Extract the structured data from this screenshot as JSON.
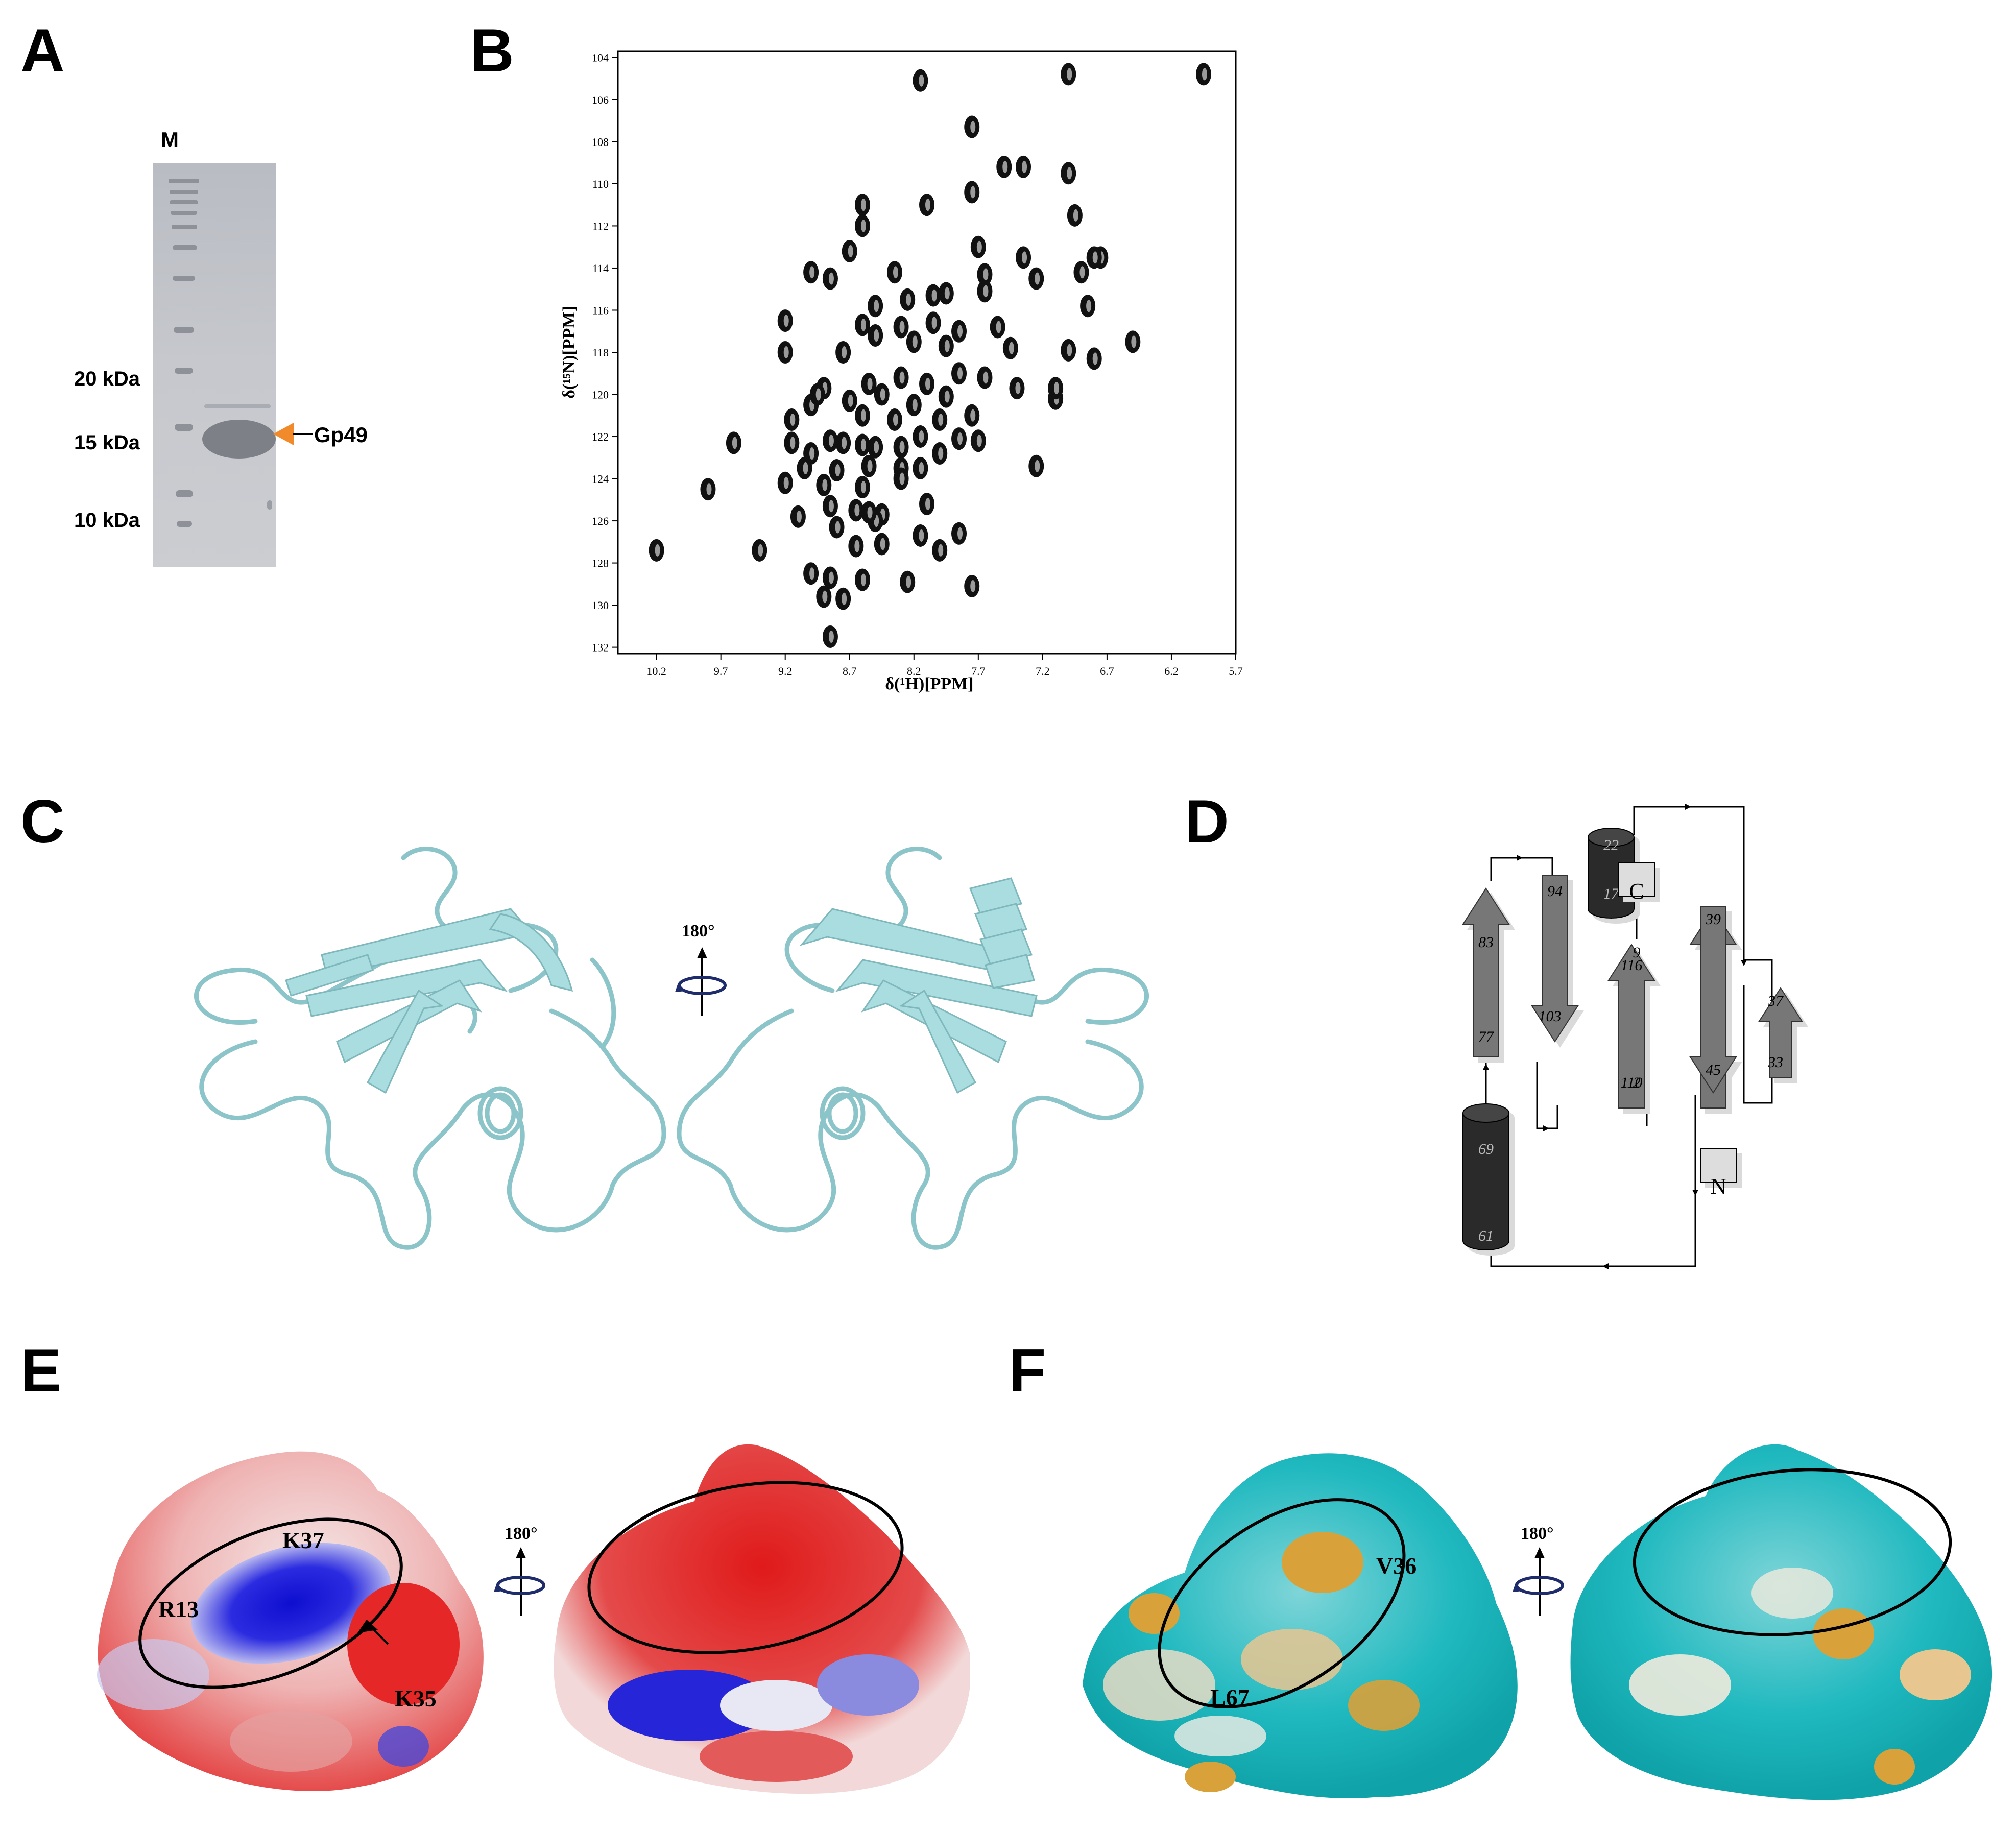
{
  "panels": {
    "a": "A",
    "b": "B",
    "c": "C",
    "d": "D",
    "e": "E",
    "f": "F"
  },
  "gel": {
    "marker_label": "M",
    "mw_labels": [
      "20 kDa",
      "15 kDa",
      "10 kDa"
    ],
    "band_label": "Gp49",
    "arrow_color": "#F08A2B"
  },
  "chart_data": {
    "type": "scatter",
    "xlabel": "δ(¹H)[PPM]",
    "ylabel": "δ(¹⁵N)[PPM]",
    "xlim": [
      10.5,
      5.7
    ],
    "ylim": [
      132.3,
      103.7
    ],
    "x_ticks": [
      "10.2",
      "9.7",
      "9.2",
      "8.7",
      "8.2",
      "7.7",
      "7.2",
      "6.7",
      "6.2",
      "5.7"
    ],
    "y_ticks": [
      "104",
      "106",
      "108",
      "110",
      "112",
      "114",
      "116",
      "118",
      "120",
      "122",
      "124",
      "126",
      "128",
      "130",
      "132"
    ],
    "series": [
      {
        "x": [
          8.15,
          7.0,
          5.95,
          7.75,
          7.5,
          7.35,
          7.0,
          7.75,
          6.95,
          8.6,
          8.1,
          8.6,
          7.7,
          7.35,
          6.75,
          9.0,
          8.85,
          8.7,
          8.35,
          7.95,
          7.65,
          7.25,
          6.9,
          6.8,
          8.5,
          8.25,
          8.05,
          7.65,
          6.85,
          9.2,
          8.6,
          8.3,
          8.05,
          7.85,
          7.55,
          9.2,
          8.75,
          8.5,
          8.2,
          7.95,
          7.45,
          7.0,
          6.5,
          8.9,
          8.55,
          8.3,
          8.1,
          7.85,
          7.65,
          7.1,
          6.8,
          9.0,
          8.7,
          8.45,
          8.2,
          7.95,
          7.4,
          7.1,
          9.15,
          8.95,
          8.6,
          8.35,
          8.0,
          7.75,
          9.0,
          8.75,
          8.5,
          8.15,
          7.85,
          9.6,
          9.15,
          8.85,
          8.6,
          8.3,
          8.0,
          7.7,
          7.25,
          9.05,
          8.8,
          8.55,
          8.3,
          8.15,
          9.2,
          8.9,
          8.6,
          8.3,
          9.8,
          8.85,
          8.65,
          8.45,
          8.1,
          9.1,
          8.8,
          8.5,
          8.15,
          7.85,
          8.65,
          8.45,
          8.0,
          10.2,
          9.4,
          9.0,
          8.85,
          8.6,
          8.25,
          7.75,
          8.9,
          8.75,
          8.6,
          8.85,
          8.55
        ],
        "y": [
          105.1,
          104.8,
          104.8,
          107.3,
          109.2,
          109.2,
          109.5,
          110.4,
          111.5,
          111.0,
          111.0,
          112.0,
          113.0,
          113.5,
          113.5,
          114.2,
          114.5,
          113.2,
          114.2,
          115.2,
          114.3,
          114.5,
          114.2,
          113.5,
          115.8,
          115.5,
          115.3,
          115.1,
          115.8,
          116.5,
          116.7,
          116.8,
          116.6,
          117.0,
          116.8,
          118.0,
          118.0,
          117.2,
          117.5,
          117.7,
          117.8,
          117.9,
          117.5,
          119.7,
          119.5,
          119.2,
          119.5,
          119.0,
          119.2,
          120.2,
          118.3,
          120.5,
          120.3,
          120.0,
          120.5,
          120.1,
          119.7,
          119.7,
          121.2,
          120.0,
          121.0,
          121.2,
          121.2,
          121.0,
          122.8,
          122.3,
          122.5,
          122.0,
          122.1,
          122.3,
          122.3,
          122.2,
          122.4,
          122.5,
          122.8,
          122.2,
          123.4,
          123.5,
          123.6,
          123.4,
          123.5,
          123.5,
          124.2,
          124.3,
          124.4,
          124.0,
          124.5,
          125.3,
          125.5,
          125.7,
          125.2,
          125.8,
          126.3,
          126.0,
          126.7,
          126.6,
          127.2,
          127.1,
          127.4,
          127.4,
          127.4,
          128.5,
          128.7,
          128.8,
          128.9,
          129.1,
          129.6,
          129.7,
          128.8,
          131.5,
          125.6
        ]
      }
    ]
  },
  "structure": {
    "rotation_label": "180°",
    "cartoon_color": "#A9DDE0"
  },
  "topology": {
    "strands": [
      {
        "top": "83",
        "bottom": "77"
      },
      {
        "top": "94",
        "bottom": "103"
      },
      {
        "top": "116",
        "bottom": "110"
      },
      {
        "top": "9",
        "bottom": "2"
      },
      {
        "top": "39",
        "bottom": "45"
      },
      {
        "top": "37",
        "bottom": "33"
      }
    ],
    "helices": [
      {
        "top": "22",
        "bottom": "17"
      },
      {
        "top": "69",
        "bottom": "61"
      }
    ],
    "n_term": "N",
    "c_term": "C"
  },
  "electrostatic": {
    "rotation_label": "180°",
    "labels": [
      "K37",
      "R13",
      "K35"
    ],
    "positive_color": "#1F1FD8",
    "negative_color": "#E52020"
  },
  "hydrophobic": {
    "rotation_label": "180°",
    "labels": [
      "V36",
      "L67"
    ],
    "polar_color": "#16B8BF",
    "hydrophobic_color": "#D8A33A"
  }
}
